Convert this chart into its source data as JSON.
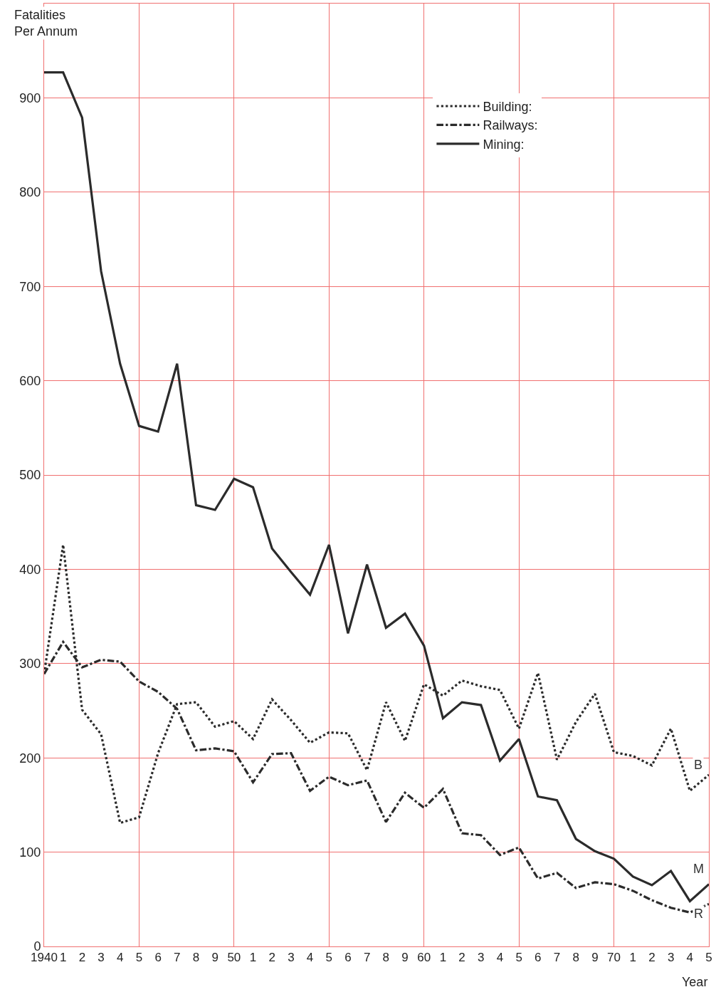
{
  "chart_data": {
    "type": "line",
    "ylabel": "Fatalities\nPer Annum",
    "xlabel": "Year",
    "categories": [
      "1940",
      "1",
      "2",
      "3",
      "4",
      "5",
      "6",
      "7",
      "8",
      "9",
      "50",
      "1",
      "2",
      "3",
      "4",
      "5",
      "6",
      "7",
      "8",
      "9",
      "60",
      "1",
      "2",
      "3",
      "4",
      "5",
      "6",
      "7",
      "8",
      "9",
      "70",
      "1",
      "2",
      "3",
      "4",
      "5"
    ],
    "series": [
      {
        "name": "Building:",
        "color": "#2b2b2b",
        "line_style": "dotted",
        "values": [
          289,
          426,
          251,
          225,
          131,
          137,
          205,
          257,
          259,
          233,
          239,
          220,
          262,
          240,
          216,
          227,
          226,
          187,
          259,
          218,
          278,
          266,
          282,
          276,
          272,
          231,
          290,
          198,
          238,
          268,
          206,
          202,
          192,
          231,
          165,
          182
        ]
      },
      {
        "name": "Railways:",
        "color": "#2b2b2b",
        "line_style": "dashdot",
        "values": [
          289,
          323,
          296,
          304,
          302,
          281,
          270,
          252,
          208,
          210,
          207,
          174,
          204,
          205,
          165,
          180,
          171,
          176,
          132,
          163,
          147,
          167,
          120,
          118,
          97,
          105,
          72,
          78,
          62,
          68,
          66,
          59,
          49,
          41,
          36,
          45
        ]
      },
      {
        "name": "Mining:",
        "color": "#2b2b2b",
        "line_style": "solid",
        "values": [
          927,
          927,
          879,
          716,
          618,
          552,
          546,
          618,
          468,
          463,
          496,
          487,
          422,
          397,
          373,
          426,
          332,
          405,
          338,
          353,
          319,
          242,
          259,
          256,
          197,
          220,
          159,
          155,
          114,
          101,
          93,
          74,
          65,
          80,
          48,
          66
        ]
      }
    ],
    "annotations": [
      "B",
      "M",
      "R"
    ],
    "ylim": [
      0,
      1000
    ],
    "yticks": [
      0,
      100,
      200,
      300,
      400,
      500,
      600,
      700,
      800,
      900,
      {
        "value": 1000,
        "label": null
      }
    ],
    "grid": true,
    "legend": "top",
    "marker": "none"
  }
}
